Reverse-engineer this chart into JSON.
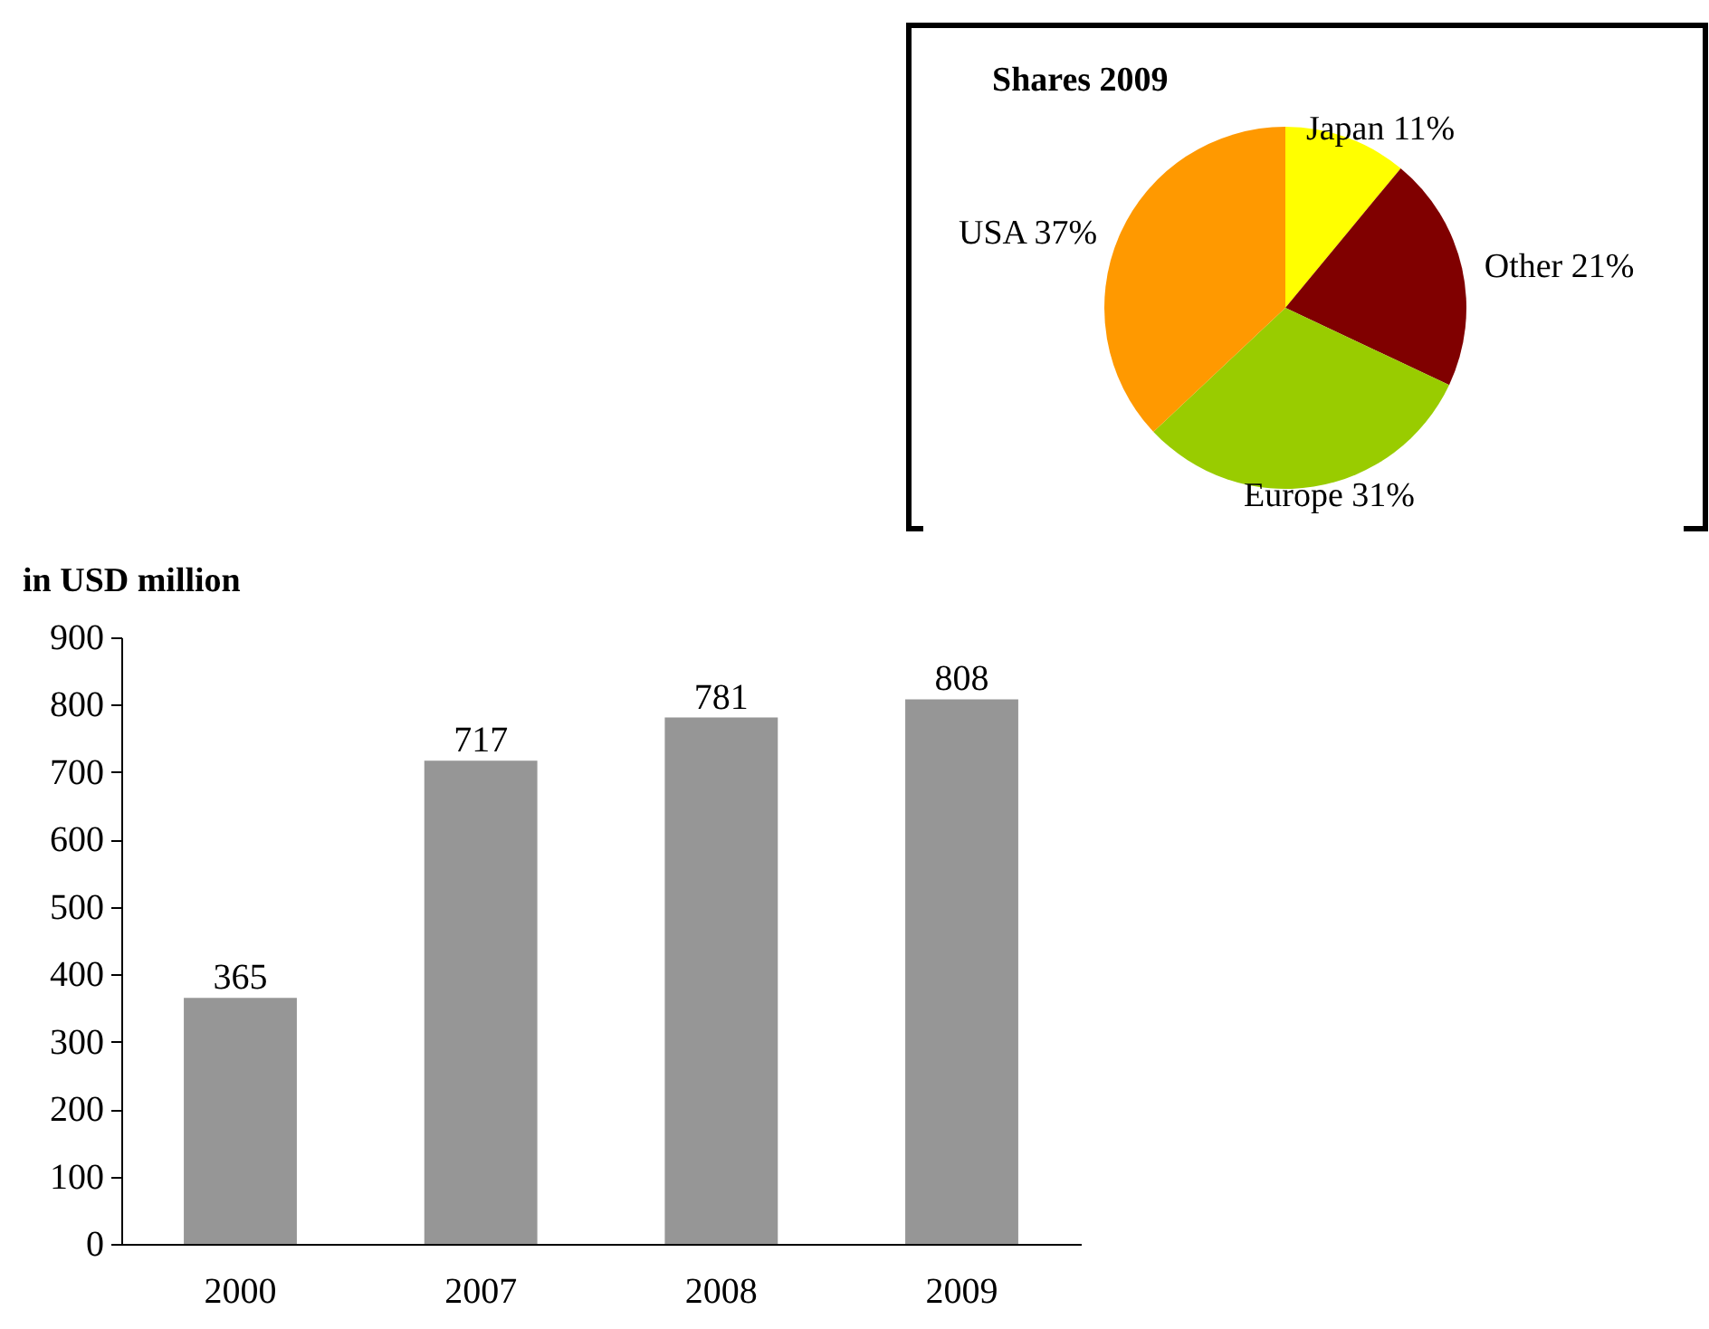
{
  "chart_data": [
    {
      "type": "pie",
      "title": "Shares 2009",
      "categories": [
        "Japan",
        "Other",
        "Europe",
        "USA"
      ],
      "values": [
        11,
        21,
        31,
        37
      ],
      "colors": [
        "#ffff00",
        "#800000",
        "#99cc00",
        "#ff9900"
      ],
      "value_labels": [
        "11%",
        "21%",
        "31%",
        "37%"
      ]
    },
    {
      "type": "bar",
      "ylabel": "in USD million",
      "categories": [
        "2000",
        "2007",
        "2008",
        "2009"
      ],
      "values": [
        365,
        717,
        781,
        808
      ],
      "color": "#969696",
      "ylim": [
        0,
        900
      ],
      "yticks": [
        0,
        100,
        200,
        300,
        400,
        500,
        600,
        700,
        800,
        900
      ],
      "data_labels": true,
      "grid": false
    }
  ]
}
